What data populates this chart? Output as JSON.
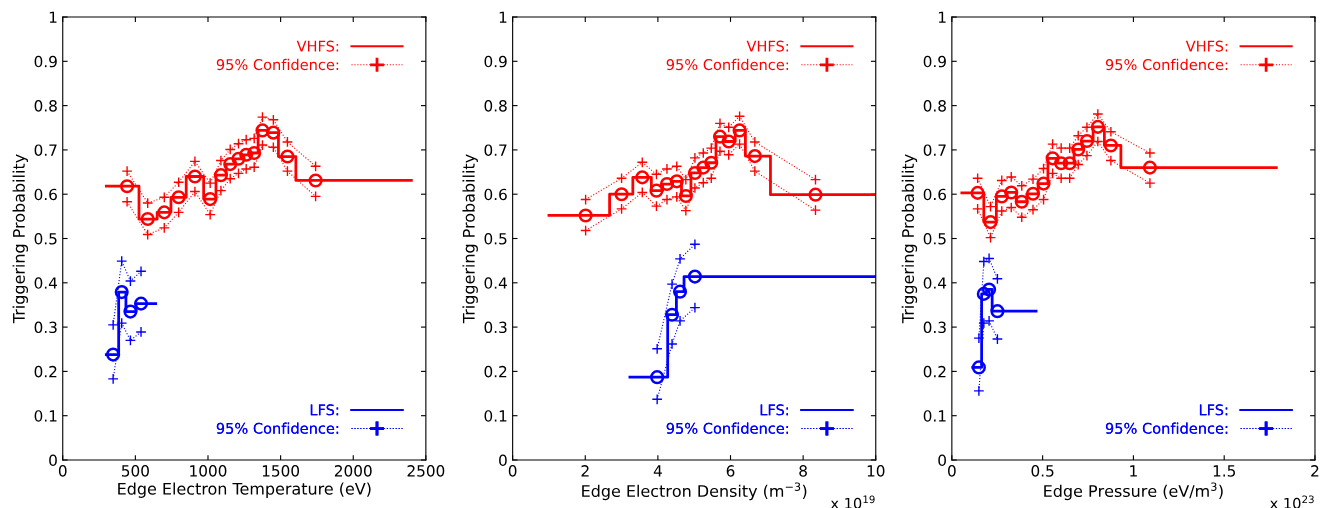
{
  "chart_data": [
    {
      "type": "step",
      "xlabel": "Edge Electron Temperature (eV)",
      "ylabel": "Triggering Probability",
      "xlim": [
        0,
        2500
      ],
      "xticks": [
        0,
        500,
        1000,
        1500,
        2000,
        2500
      ],
      "ylim": [
        0,
        1
      ],
      "yticks": [
        0,
        0.1,
        0.2,
        0.3,
        0.4,
        0.5,
        0.6,
        0.7,
        0.8,
        0.9,
        1
      ],
      "grid": false,
      "legend": "top right",
      "series": [
        {
          "name": "VHFS:",
          "color": "#ff0000",
          "x": [
            300,
            525,
            650,
            745,
            850,
            970,
            1055,
            1125,
            1180,
            1235,
            1290,
            1345,
            1410,
            1485,
            1605,
            2400
          ],
          "values": [
            0.618,
            0.544,
            0.559,
            0.593,
            0.64,
            0.589,
            0.643,
            0.668,
            0.68,
            0.689,
            0.693,
            0.744,
            0.739,
            0.685,
            0.631,
            0.631
          ]
        },
        {
          "type": "scatter",
          "color": "#ff0000",
          "marker": "circle",
          "x": [
            443,
            585,
            699,
            798,
            910,
            1015,
            1089,
            1153,
            1210,
            1263,
            1318,
            1375,
            1450,
            1547,
            1741
          ],
          "values": [
            0.618,
            0.544,
            0.559,
            0.593,
            0.64,
            0.589,
            0.643,
            0.668,
            0.68,
            0.689,
            0.693,
            0.744,
            0.739,
            0.685,
            0.631
          ]
        },
        {
          "name": "95% Confidence:",
          "type": "line",
          "color": "#ff0000",
          "marker": "cross",
          "line_style": "dotted",
          "x": [
            443,
            585,
            699,
            798,
            910,
            1015,
            1089,
            1153,
            1210,
            1263,
            1318,
            1375,
            1450,
            1547,
            1741
          ],
          "values": [
            0.652,
            0.58,
            0.593,
            0.627,
            0.674,
            0.625,
            0.676,
            0.701,
            0.714,
            0.723,
            0.726,
            0.774,
            0.768,
            0.718,
            0.663
          ]
        },
        {
          "type": "line",
          "color": "#ff0000",
          "marker": "cross",
          "line_style": "dotted",
          "x": [
            443,
            585,
            699,
            798,
            910,
            1015,
            1089,
            1153,
            1210,
            1263,
            1318,
            1375,
            1450,
            1547,
            1741
          ],
          "values": [
            0.583,
            0.509,
            0.524,
            0.559,
            0.606,
            0.554,
            0.608,
            0.635,
            0.647,
            0.657,
            0.661,
            0.711,
            0.706,
            0.652,
            0.595
          ]
        },
        {
          "name": "LFS:",
          "color": "#0000ff",
          "x": [
            300,
            385,
            435,
            505,
            640
          ],
          "values": [
            0.238,
            0.379,
            0.335,
            0.353,
            0.353
          ]
        },
        {
          "type": "scatter",
          "color": "#0000ff",
          "marker": "circle",
          "x": [
            347,
            406,
            466,
            539
          ],
          "values": [
            0.238,
            0.379,
            0.335,
            0.353
          ]
        },
        {
          "name": "95% Confidence:",
          "type": "line",
          "color": "#0000ff",
          "marker": "cross",
          "line_style": "dotted",
          "x": [
            347,
            406,
            466,
            539
          ],
          "values": [
            0.305,
            0.449,
            0.404,
            0.426
          ]
        },
        {
          "type": "line",
          "color": "#0000ff",
          "marker": "cross",
          "line_style": "dotted",
          "x": [
            347,
            406,
            466,
            539
          ],
          "values": [
            0.183,
            0.309,
            0.27,
            0.289
          ]
        }
      ]
    },
    {
      "type": "step",
      "xlabel": "Edge Electron Density (m$^{−3}$)",
      "ylabel": "Triggering Probability",
      "xlim": [
        0,
        10
      ],
      "xticks": [
        0,
        2,
        4,
        6,
        8,
        10
      ],
      "ylim": [
        0,
        1
      ],
      "yticks": [
        0,
        0.1,
        0.2,
        0.3,
        0.4,
        0.5,
        0.6,
        0.7,
        0.8,
        0.9,
        1
      ],
      "grid": false,
      "legend": "top right",
      "annotations": [
        "x 10$^{19}$"
      ],
      "series": [
        {
          "name": "VHFS:",
          "color": "#ff0000",
          "x": [
            1.0,
            2.67,
            3.31,
            3.82,
            4.13,
            4.4,
            4.65,
            4.91,
            5.15,
            5.36,
            5.6,
            5.84,
            6.13,
            6.41,
            7.1,
            10
          ],
          "values": [
            0.552,
            0.6,
            0.638,
            0.608,
            0.623,
            0.629,
            0.596,
            0.648,
            0.66,
            0.671,
            0.73,
            0.719,
            0.744,
            0.686,
            0.599,
            0.599
          ]
        },
        {
          "type": "scatter",
          "color": "#ff0000",
          "marker": "circle",
          "x": [
            2.01,
            3.0,
            3.57,
            3.96,
            4.25,
            4.52,
            4.77,
            5.02,
            5.25,
            5.47,
            5.71,
            5.95,
            6.25,
            6.67,
            8.34
          ],
          "values": [
            0.552,
            0.6,
            0.638,
            0.608,
            0.623,
            0.629,
            0.596,
            0.648,
            0.66,
            0.671,
            0.73,
            0.719,
            0.744,
            0.686,
            0.599
          ]
        },
        {
          "name": "95% Confidence:",
          "type": "line",
          "color": "#ff0000",
          "marker": "cross",
          "line_style": "dotted",
          "x": [
            2.01,
            3.0,
            3.57,
            3.96,
            4.25,
            4.52,
            4.77,
            5.02,
            5.25,
            5.47,
            5.71,
            5.95,
            6.25,
            6.67,
            8.34
          ],
          "values": [
            0.588,
            0.636,
            0.672,
            0.645,
            0.657,
            0.663,
            0.633,
            0.682,
            0.693,
            0.704,
            0.76,
            0.751,
            0.776,
            0.718,
            0.633
          ]
        },
        {
          "type": "line",
          "color": "#ff0000",
          "marker": "cross",
          "line_style": "dotted",
          "x": [
            2.01,
            3.0,
            3.57,
            3.96,
            4.25,
            4.52,
            4.77,
            5.02,
            5.25,
            5.47,
            5.71,
            5.95,
            6.25,
            6.67,
            8.34
          ],
          "values": [
            0.518,
            0.567,
            0.604,
            0.573,
            0.588,
            0.594,
            0.563,
            0.614,
            0.626,
            0.636,
            0.697,
            0.689,
            0.713,
            0.652,
            0.564
          ]
        },
        {
          "name": "LFS:",
          "color": "#0000ff",
          "x": [
            3.23,
            4.27,
            4.51,
            4.72,
            10
          ],
          "values": [
            0.187,
            0.328,
            0.38,
            0.414,
            0.414
          ]
        },
        {
          "type": "scatter",
          "color": "#0000ff",
          "marker": "circle",
          "x": [
            3.98,
            4.39,
            4.61,
            5.02
          ],
          "values": [
            0.187,
            0.328,
            0.38,
            0.414
          ]
        },
        {
          "name": "95% Confidence:",
          "type": "line",
          "color": "#0000ff",
          "marker": "cross",
          "line_style": "dotted",
          "x": [
            3.98,
            4.39,
            4.61,
            5.02
          ],
          "values": [
            0.251,
            0.397,
            0.454,
            0.487
          ]
        },
        {
          "type": "line",
          "color": "#0000ff",
          "marker": "cross",
          "line_style": "dotted",
          "x": [
            3.98,
            4.39,
            4.61,
            5.02
          ],
          "values": [
            0.137,
            0.262,
            0.314,
            0.344
          ]
        }
      ]
    },
    {
      "type": "step",
      "xlabel": "Edge Pressure (eV/m$^{3}$)",
      "ylabel": "Triggering Probability",
      "xlim": [
        0,
        2
      ],
      "xticks": [
        0,
        0.5,
        1,
        1.5,
        2
      ],
      "ylim": [
        0,
        1
      ],
      "yticks": [
        0,
        0.1,
        0.2,
        0.3,
        0.4,
        0.5,
        0.6,
        0.7,
        0.8,
        0.9,
        1
      ],
      "grid": false,
      "legend": "top right",
      "annotations": [
        "x 10$^{23}$"
      ],
      "series": [
        {
          "name": "VHFS:",
          "color": "#ff0000",
          "x": [
            0.055,
            0.176,
            0.245,
            0.3,
            0.355,
            0.413,
            0.475,
            0.529,
            0.578,
            0.627,
            0.673,
            0.718,
            0.778,
            0.84,
            0.931,
            1.787
          ],
          "values": [
            0.603,
            0.537,
            0.595,
            0.604,
            0.583,
            0.601,
            0.624,
            0.681,
            0.67,
            0.67,
            0.701,
            0.72,
            0.752,
            0.71,
            0.66,
            0.66
          ]
        },
        {
          "type": "scatter",
          "color": "#ff0000",
          "marker": "circle",
          "x": [
            0.142,
            0.213,
            0.275,
            0.327,
            0.385,
            0.447,
            0.505,
            0.555,
            0.602,
            0.649,
            0.696,
            0.744,
            0.804,
            0.876,
            1.091
          ],
          "values": [
            0.603,
            0.537,
            0.595,
            0.604,
            0.583,
            0.601,
            0.624,
            0.681,
            0.67,
            0.67,
            0.701,
            0.72,
            0.752,
            0.71,
            0.66
          ]
        },
        {
          "name": "95% Confidence:",
          "type": "line",
          "color": "#ff0000",
          "marker": "cross",
          "line_style": "dotted",
          "x": [
            0.142,
            0.213,
            0.275,
            0.327,
            0.385,
            0.447,
            0.505,
            0.555,
            0.602,
            0.649,
            0.696,
            0.744,
            0.804,
            0.876,
            1.091
          ],
          "values": [
            0.636,
            0.572,
            0.631,
            0.639,
            0.619,
            0.634,
            0.658,
            0.713,
            0.704,
            0.704,
            0.732,
            0.751,
            0.781,
            0.741,
            0.693
          ]
        },
        {
          "type": "line",
          "color": "#ff0000",
          "marker": "cross",
          "line_style": "dotted",
          "x": [
            0.142,
            0.213,
            0.275,
            0.327,
            0.385,
            0.447,
            0.505,
            0.555,
            0.602,
            0.649,
            0.696,
            0.744,
            0.804,
            0.876,
            1.091
          ],
          "values": [
            0.567,
            0.502,
            0.562,
            0.57,
            0.548,
            0.565,
            0.588,
            0.647,
            0.636,
            0.636,
            0.667,
            0.687,
            0.719,
            0.676,
            0.625
          ]
        },
        {
          "name": "LFS:",
          "color": "#0000ff",
          "x": [
            0.115,
            0.164,
            0.191,
            0.222,
            0.464
          ],
          "values": [
            0.209,
            0.375,
            0.385,
            0.336,
            0.336
          ]
        },
        {
          "type": "scatter",
          "color": "#0000ff",
          "marker": "circle",
          "x": [
            0.149,
            0.176,
            0.205,
            0.251
          ],
          "values": [
            0.209,
            0.375,
            0.385,
            0.336
          ]
        },
        {
          "name": "95% Confidence:",
          "type": "line",
          "color": "#0000ff",
          "marker": "cross",
          "line_style": "dotted",
          "x": [
            0.149,
            0.176,
            0.205,
            0.251
          ],
          "values": [
            0.275,
            0.448,
            0.455,
            0.409
          ]
        },
        {
          "type": "line",
          "color": "#0000ff",
          "marker": "cross",
          "line_style": "dotted",
          "x": [
            0.149,
            0.176,
            0.205,
            0.251
          ],
          "values": [
            0.156,
            0.309,
            0.314,
            0.273
          ]
        }
      ]
    }
  ]
}
